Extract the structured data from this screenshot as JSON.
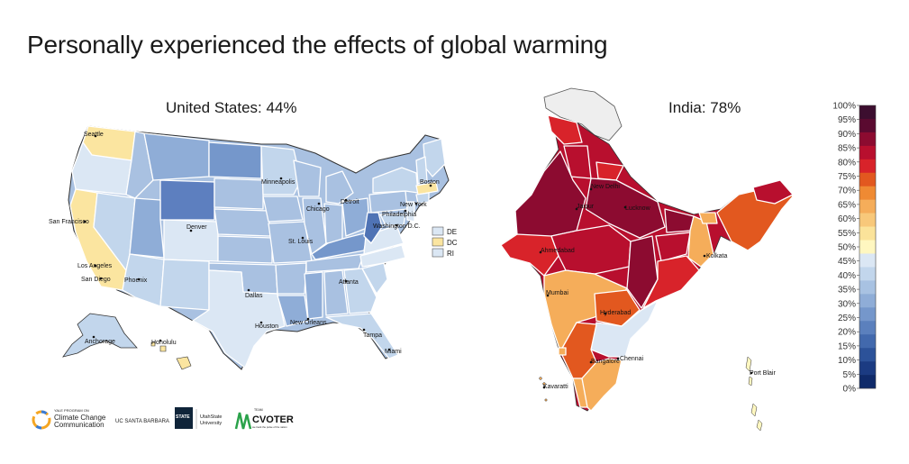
{
  "title": "Personally experienced the effects of global warming",
  "us": {
    "title": "United States: 44%",
    "cities": [
      "Seattle",
      "San Francisco",
      "Los Angeles",
      "San Diego",
      "Phoenix",
      "Denver",
      "Dallas",
      "Houston",
      "Minneapolis",
      "Chicago",
      "Detroit",
      "St. Louis",
      "Atlanta",
      "New Orleans",
      "Tampa",
      "Miami",
      "Boston",
      "New York",
      "Philadelphia",
      "Washington D.C.",
      "Anchorage",
      "Honolulu"
    ],
    "small_state_legend": [
      "DE",
      "DC",
      "RI"
    ]
  },
  "india": {
    "title": "India: 78%",
    "cities": [
      "New Delhi",
      "Jaipur",
      "Lucknow",
      "Ahmedabad",
      "Kolkata",
      "Mumbai",
      "Hyderabad",
      "Chennai",
      "Bangalore",
      "Kavaratti",
      "Port Blair"
    ]
  },
  "colorbar": {
    "ticks": [
      "100%",
      "95%",
      "90%",
      "85%",
      "80%",
      "75%",
      "70%",
      "65%",
      "60%",
      "55%",
      "50%",
      "45%",
      "40%",
      "35%",
      "30%",
      "25%",
      "20%",
      "15%",
      "10%",
      "5%",
      "0%"
    ],
    "colors": [
      "#3c0e2f",
      "#5a0a30",
      "#8c0b30",
      "#b80f2e",
      "#d8232a",
      "#e2581f",
      "#ef8a33",
      "#f5ad5a",
      "#f8c87a",
      "#fbe39a",
      "#fff7c0",
      "#dbe7f4",
      "#c2d6ec",
      "#a8c2e2",
      "#8fadd7",
      "#7597cb",
      "#5b80bd",
      "#4269ad",
      "#2c5299",
      "#1b3b82",
      "#0f2a6a"
    ]
  },
  "logos": {
    "yale_line1": "YALE PROGRAM ON",
    "yale_line2": "Climate Change",
    "yale_line3": "Communication",
    "ucsb": "UC SANTA BARBARA",
    "usu_mark": "STATE",
    "usu_line1": "UtahState",
    "usu_line2": "University",
    "cvoter_team": "TEAM",
    "cvoter": "CVOTER",
    "cvoter_tag": "we track the pulse of the nation"
  }
}
